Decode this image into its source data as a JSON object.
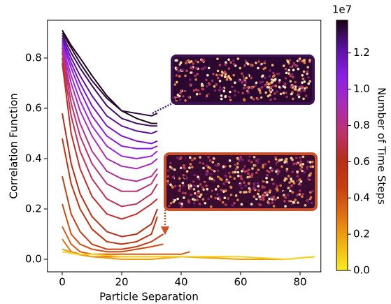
{
  "chart_data": {
    "type": "line",
    "xlabel": "Particle Separation",
    "ylabel": "Correlation Function",
    "xlim": [
      -5,
      87
    ],
    "ylim": [
      -0.05,
      0.95
    ],
    "xticks": [
      0,
      20,
      40,
      60,
      80
    ],
    "yticks": [
      {
        "value": 0,
        "label": "0.0"
      },
      0.2,
      0.4,
      0.6,
      0.8
    ],
    "series": [
      {
        "color": "#1a0414",
        "x": [
          0,
          3,
          6,
          10,
          15,
          20,
          25,
          30,
          32
        ],
        "values": [
          0.91,
          0.85,
          0.8,
          0.73,
          0.65,
          0.59,
          0.56,
          0.54,
          0.54
        ]
      },
      {
        "color": "#2e0a3a",
        "x": [
          0,
          3,
          6,
          10,
          15,
          20,
          25,
          30,
          32
        ],
        "values": [
          0.9,
          0.84,
          0.78,
          0.71,
          0.64,
          0.59,
          0.58,
          0.57,
          0.58
        ]
      },
      {
        "color": "#3e0c60",
        "x": [
          0,
          3,
          6,
          10,
          15,
          20,
          25,
          30,
          32
        ],
        "values": [
          0.89,
          0.82,
          0.76,
          0.69,
          0.61,
          0.56,
          0.54,
          0.53,
          0.53
        ]
      },
      {
        "color": "#5a10a0",
        "x": [
          0,
          3,
          6,
          10,
          15,
          20,
          25,
          30,
          32
        ],
        "values": [
          0.88,
          0.8,
          0.73,
          0.65,
          0.57,
          0.53,
          0.51,
          0.5,
          0.51
        ]
      },
      {
        "color": "#7614d0",
        "x": [
          0,
          3,
          6,
          10,
          15,
          20,
          25,
          30,
          32
        ],
        "values": [
          0.87,
          0.78,
          0.7,
          0.61,
          0.53,
          0.49,
          0.47,
          0.46,
          0.47
        ]
      },
      {
        "color": "#8c1ee8",
        "x": [
          0,
          3,
          6,
          10,
          15,
          20,
          25,
          30,
          32
        ],
        "values": [
          0.86,
          0.76,
          0.67,
          0.57,
          0.49,
          0.45,
          0.44,
          0.44,
          0.45
        ]
      },
      {
        "color": "#9e28e0",
        "x": [
          0,
          3,
          6,
          10,
          15,
          20,
          25,
          30,
          32
        ],
        "values": [
          0.85,
          0.73,
          0.63,
          0.53,
          0.45,
          0.41,
          0.4,
          0.41,
          0.43
        ]
      },
      {
        "color": "#aa2cb8",
        "x": [
          0,
          3,
          6,
          10,
          15,
          20,
          25,
          30,
          32
        ],
        "values": [
          0.84,
          0.7,
          0.59,
          0.49,
          0.4,
          0.37,
          0.36,
          0.38,
          0.4
        ]
      },
      {
        "color": "#b43090",
        "x": [
          0,
          3,
          6,
          10,
          15,
          20,
          25,
          30,
          32
        ],
        "values": [
          0.83,
          0.66,
          0.54,
          0.43,
          0.35,
          0.32,
          0.31,
          0.33,
          0.36
        ]
      },
      {
        "color": "#be3070",
        "x": [
          0,
          3,
          6,
          10,
          15,
          20,
          25,
          30,
          32
        ],
        "values": [
          0.82,
          0.62,
          0.49,
          0.38,
          0.3,
          0.27,
          0.27,
          0.3,
          0.34
        ]
      },
      {
        "color": "#c43050",
        "x": [
          0,
          3,
          6,
          10,
          15,
          20,
          25,
          30,
          32
        ],
        "values": [
          0.8,
          0.57,
          0.43,
          0.32,
          0.24,
          0.21,
          0.22,
          0.26,
          0.3
        ]
      },
      {
        "color": "#c02e2a",
        "x": [
          0,
          3,
          6,
          10,
          15,
          20,
          25,
          30,
          32
        ],
        "values": [
          0.78,
          0.5,
          0.36,
          0.25,
          0.18,
          0.16,
          0.18,
          0.22,
          0.24
        ]
      },
      {
        "color": "#b82e14",
        "x": [
          0,
          3,
          6,
          10,
          15,
          20,
          25,
          30,
          32
        ],
        "values": [
          0.58,
          0.38,
          0.26,
          0.17,
          0.11,
          0.09,
          0.1,
          0.14,
          0.2
        ]
      },
      {
        "color": "#c03410",
        "x": [
          0,
          3,
          6,
          10,
          15,
          20,
          25,
          30,
          32
        ],
        "values": [
          0.48,
          0.3,
          0.2,
          0.12,
          0.07,
          0.06,
          0.07,
          0.1,
          0.17
        ]
      },
      {
        "color": "#c83e10",
        "x": [
          0,
          3,
          6,
          10,
          15,
          20,
          25,
          30,
          34
        ],
        "values": [
          0.33,
          0.18,
          0.11,
          0.06,
          0.04,
          0.04,
          0.05,
          0.07,
          0.1
        ]
      },
      {
        "color": "#d04c10",
        "x": [
          0,
          3,
          6,
          10,
          15,
          20,
          25,
          30,
          34
        ],
        "values": [
          0.22,
          0.1,
          0.06,
          0.04,
          0.03,
          0.03,
          0.04,
          0.05,
          0.06
        ]
      },
      {
        "color": "#d85c10",
        "x": [
          0,
          3,
          6,
          10,
          15,
          20,
          30,
          40,
          43
        ],
        "values": [
          0.13,
          0.06,
          0.03,
          0.02,
          0.02,
          0.02,
          0.02,
          0.02,
          0.03
        ]
      },
      {
        "color": "#e07010",
        "x": [
          0,
          3,
          6,
          10,
          20,
          30,
          40,
          50,
          56
        ],
        "values": [
          0.08,
          0.03,
          0.02,
          0.01,
          0.01,
          0.01,
          0.01,
          0.01,
          0.01
        ]
      },
      {
        "color": "#eca010",
        "x": [
          0,
          5,
          10,
          20,
          30,
          40,
          60,
          75,
          85
        ],
        "values": [
          0.04,
          0.02,
          0.01,
          0.0,
          0.0,
          0.01,
          0.0,
          0.0,
          0.01
        ]
      },
      {
        "color": "#f6d41c",
        "x": [
          0,
          5,
          10,
          20,
          30,
          40,
          60,
          75,
          85
        ],
        "values": [
          0.03,
          0.02,
          0.02,
          0.01,
          0.01,
          0.01,
          0.01,
          0.0,
          0.01
        ]
      }
    ],
    "colorbar": {
      "label": "Number of Time Steps",
      "offset_label": "1e7",
      "lim": [
        0,
        1.38
      ],
      "ticks": [
        {
          "value": 0,
          "label": "0.0"
        },
        0.2,
        0.4,
        0.6,
        0.8,
        {
          "value": 1,
          "label": "1.0"
        },
        1.2
      ],
      "colors": [
        "#f8ec20",
        "#f0b010",
        "#e07010",
        "#c83e10",
        "#b82e18",
        "#c03070",
        "#a82cb8",
        "#8c1ee8",
        "#5a10a0",
        "#1a0414"
      ]
    }
  }
}
